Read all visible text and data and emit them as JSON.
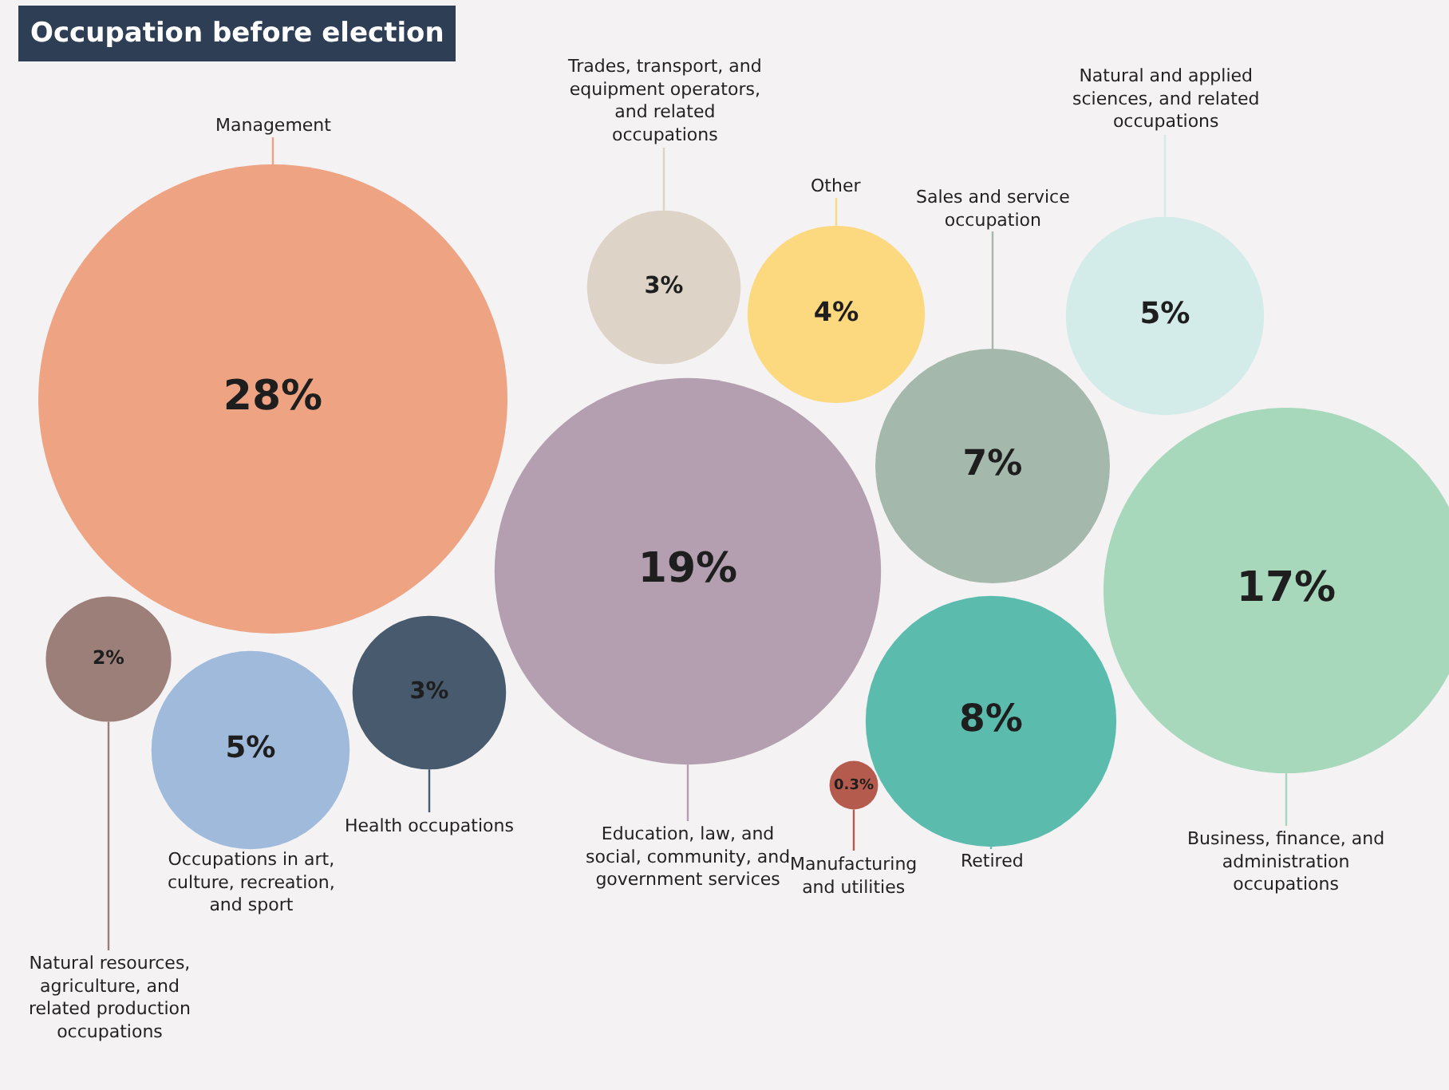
{
  "chart_data": {
    "type": "other",
    "title": "Occupation before election",
    "categories": [
      "Management",
      "Natural resources, agriculture, and related production occupations",
      "Occupations in art, culture, recreation, and sport",
      "Health occupations",
      "Education, law, and social, community, and government services",
      "Trades, transport, and equipment operators, and related occupations",
      "Other",
      "Manufacturing and utilities",
      "Sales and service occupation",
      "Retired",
      "Natural and applied sciences, and related occupations",
      "Business, finance, and administration occupations"
    ],
    "values": [
      28,
      2,
      5,
      3,
      19,
      3,
      4,
      0.3,
      7,
      8,
      5,
      17
    ],
    "value_labels": [
      "28%",
      "2%",
      "5%",
      "3%",
      "19%",
      "3%",
      "4%",
      "0.3%",
      "7%",
      "8%",
      "5%",
      "17%"
    ],
    "colors": [
      "#eea383",
      "#9c7f78",
      "#9fbadb",
      "#485a6d",
      "#b49fb0",
      "#ddd3c6",
      "#fcd87e",
      "#b55b4e",
      "#a5b8ac",
      "#5bbcae",
      "#d3ebe9",
      "#a8d8bc"
    ]
  }
}
